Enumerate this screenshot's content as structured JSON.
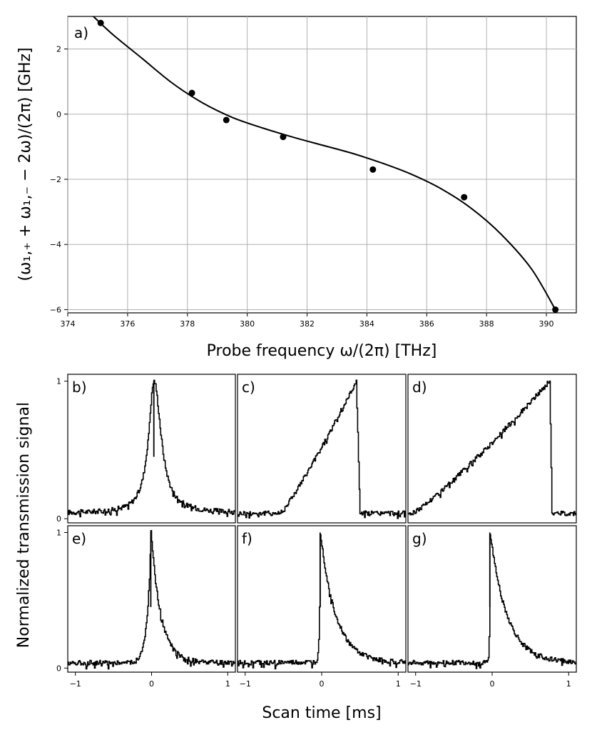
{
  "chart_data": [
    {
      "type": "scatter",
      "panel_label": "a)",
      "xlabel": "Probe frequency ω/(2π) [THz]",
      "ylabel": "(ω₁,₊ + ω₁,₋ − 2ω)/(2π) [GHz]",
      "xlim": [
        374,
        391
      ],
      "ylim": [
        -6.1,
        3.0
      ],
      "grid": true,
      "xticks": [
        374,
        376,
        378,
        380,
        382,
        384,
        386,
        388,
        390
      ],
      "xtick_labels": [
        "374",
        "376",
        "378",
        "380",
        "382",
        "384",
        "386",
        "388",
        "390"
      ],
      "yticks": [
        2,
        0,
        -2,
        -4,
        -6
      ],
      "ytick_labels": [
        "2",
        "0",
        "−2",
        "−4",
        "−6"
      ],
      "points": {
        "x": [
          375.1,
          378.15,
          379.3,
          381.2,
          384.2,
          387.25,
          390.3
        ],
        "y": [
          2.8,
          0.65,
          -0.18,
          -0.7,
          -1.7,
          -2.55,
          -6.0
        ]
      },
      "fit_curve": {
        "x": [
          374.8,
          375.5,
          376.5,
          377.5,
          378.5,
          379.5,
          380.5,
          381.5,
          382.5,
          383.5,
          384.5,
          385.5,
          386.5,
          387.5,
          388.5,
          389.5,
          390.3
        ],
        "y": [
          3.05,
          2.45,
          1.7,
          0.95,
          0.35,
          -0.1,
          -0.42,
          -0.7,
          -0.95,
          -1.2,
          -1.5,
          -1.85,
          -2.3,
          -2.9,
          -3.7,
          -4.75,
          -6.0
        ]
      }
    },
    {
      "type": "line",
      "shared": {
        "ylabel": "Normalized transmission signal",
        "xlabel": "Scan time [ms]",
        "xlim": [
          -1.1,
          1.1
        ],
        "ylim": [
          -0.03,
          1.05
        ],
        "xticks": [
          -1,
          0,
          1
        ],
        "xtick_labels": [
          "−1",
          "0",
          "1"
        ],
        "yticks": [
          1,
          0
        ],
        "ytick_labels": [
          "1",
          "0"
        ]
      },
      "panels": [
        {
          "label": "b)",
          "shape": "symmetric",
          "peak_time": 0.03,
          "rise_width": 0.09,
          "decay_width": 0.11,
          "baseline": 0.04
        },
        {
          "label": "c)",
          "shape": "triangle",
          "start_time": -0.55,
          "peak_time": 0.45,
          "drop_time": 0.5,
          "baseline": 0.04
        },
        {
          "label": "d)",
          "shape": "triangle",
          "start_time": -1.05,
          "peak_time": 0.75,
          "drop_time": 0.78,
          "baseline": 0.04
        },
        {
          "label": "e)",
          "shape": "asymmetric",
          "peak_time": -0.01,
          "rise_width": 0.05,
          "decay_width": 0.13,
          "baseline": 0.04
        },
        {
          "label": "f)",
          "shape": "asymmetric",
          "peak_time": -0.02,
          "rise_width": 0.012,
          "decay_width": 0.2,
          "baseline": 0.04
        },
        {
          "label": "g)",
          "shape": "asymmetric",
          "peak_time": -0.03,
          "rise_width": 0.006,
          "decay_width": 0.22,
          "baseline": 0.04
        }
      ]
    }
  ]
}
